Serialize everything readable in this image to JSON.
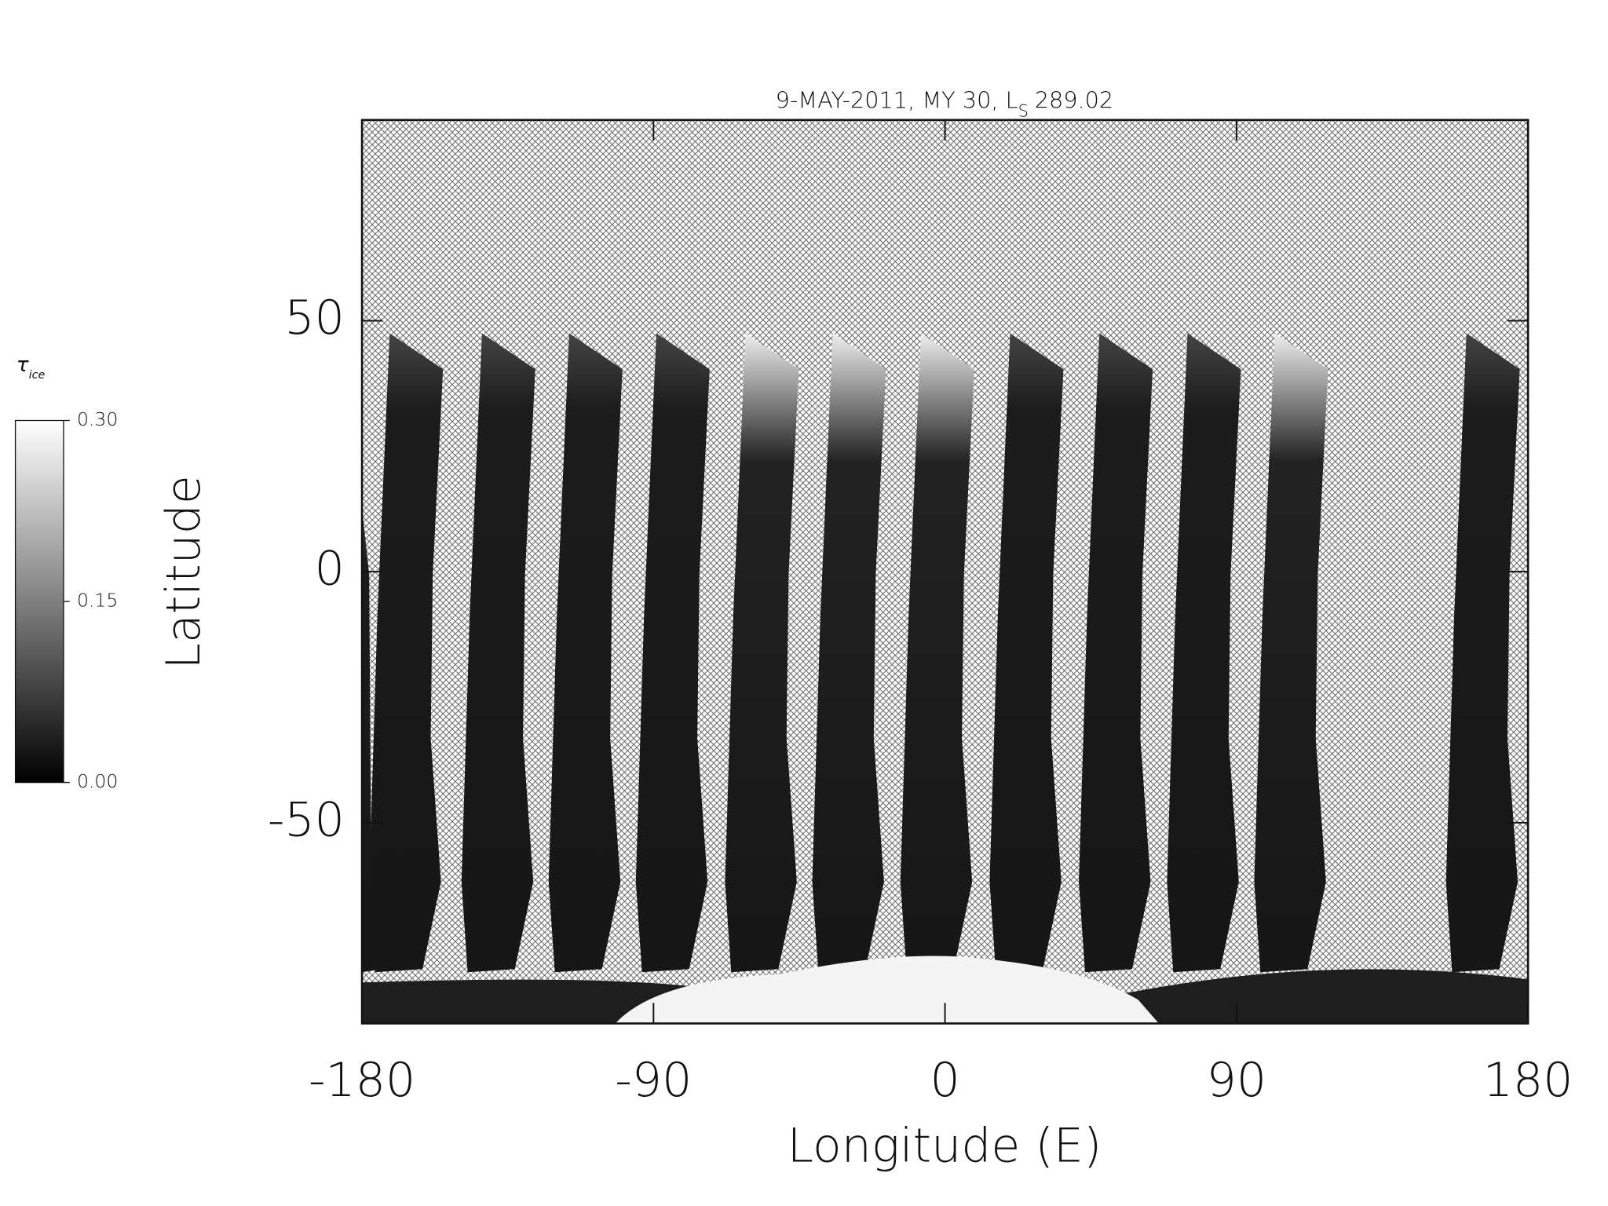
{
  "chart_data": {
    "type": "map",
    "title": "9-MAY-2011, MY 30,  L",
    "title_subscript": "S",
    "title_value": "289.02",
    "xlabel": "Longitude (E)",
    "ylabel": "Latitude",
    "xlim": [
      -180,
      180
    ],
    "ylim": [
      -90,
      90
    ],
    "xticks": [
      -180,
      -90,
      0,
      90,
      180
    ],
    "yticks": [
      -50,
      0,
      50
    ],
    "colorbar": {
      "label": "τ",
      "label_subscript": "ice",
      "lim": [
        0,
        0.3
      ],
      "ticks": [
        {
          "value": 0,
          "label": "0.00"
        },
        {
          "value": 0.15,
          "label": "0.15"
        },
        {
          "value": 0.3,
          "label": "0.30"
        }
      ],
      "colors": [
        "#000000",
        "#ffffff"
      ]
    }
  }
}
